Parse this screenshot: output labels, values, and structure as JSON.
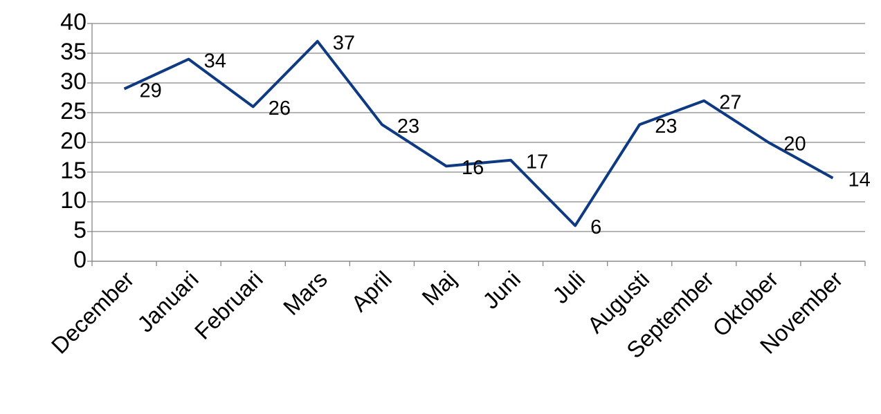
{
  "chart_data": {
    "type": "line",
    "categories": [
      "December",
      "Januari",
      "Februari",
      "Mars",
      "April",
      "Maj",
      "Juni",
      "Juli",
      "Augusti",
      "September",
      "Oktober",
      "November"
    ],
    "values": [
      29,
      34,
      26,
      37,
      23,
      16,
      17,
      6,
      23,
      27,
      20,
      14
    ],
    "color": "#0e3a82",
    "ylim": [
      0,
      40
    ],
    "yticks": [
      0,
      5,
      10,
      15,
      20,
      25,
      30,
      35,
      40
    ],
    "grid": true
  }
}
